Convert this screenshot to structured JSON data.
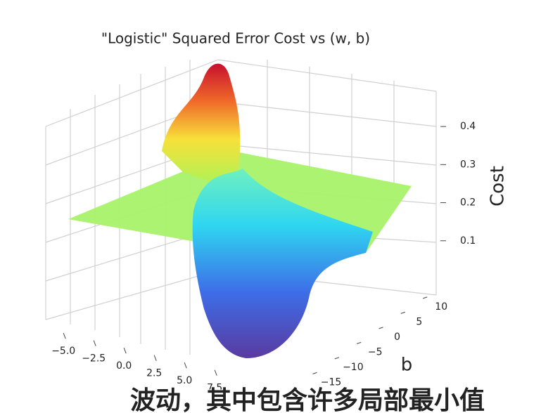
{
  "chart_data": {
    "type": "surface3d",
    "title": "\"Logistic\" Squared Error Cost vs (w, b)",
    "ylabel": "b",
    "zlabel": "Cost",
    "xlim": [
      -6,
      9
    ],
    "xticks": [
      {
        "value": -5,
        "label": "−5.0"
      },
      {
        "value": -2.5,
        "label": "−2.5"
      },
      {
        "value": 0,
        "label": "0.0"
      },
      2.5,
      {
        "value": 5,
        "label": "5.0"
      },
      7.5
    ],
    "ylim": [
      -17,
      13
    ],
    "yticks": [
      {
        "value": -15,
        "label": "−15"
      },
      {
        "value": -10,
        "label": "−10"
      },
      {
        "value": -5,
        "label": "−5"
      },
      0,
      5,
      10
    ],
    "zlim": [
      0,
      0.45
    ],
    "zticks": [
      0.1,
      0.2,
      0.3,
      0.4
    ],
    "caption": "波动，其中包含许多局部最小值"
  }
}
